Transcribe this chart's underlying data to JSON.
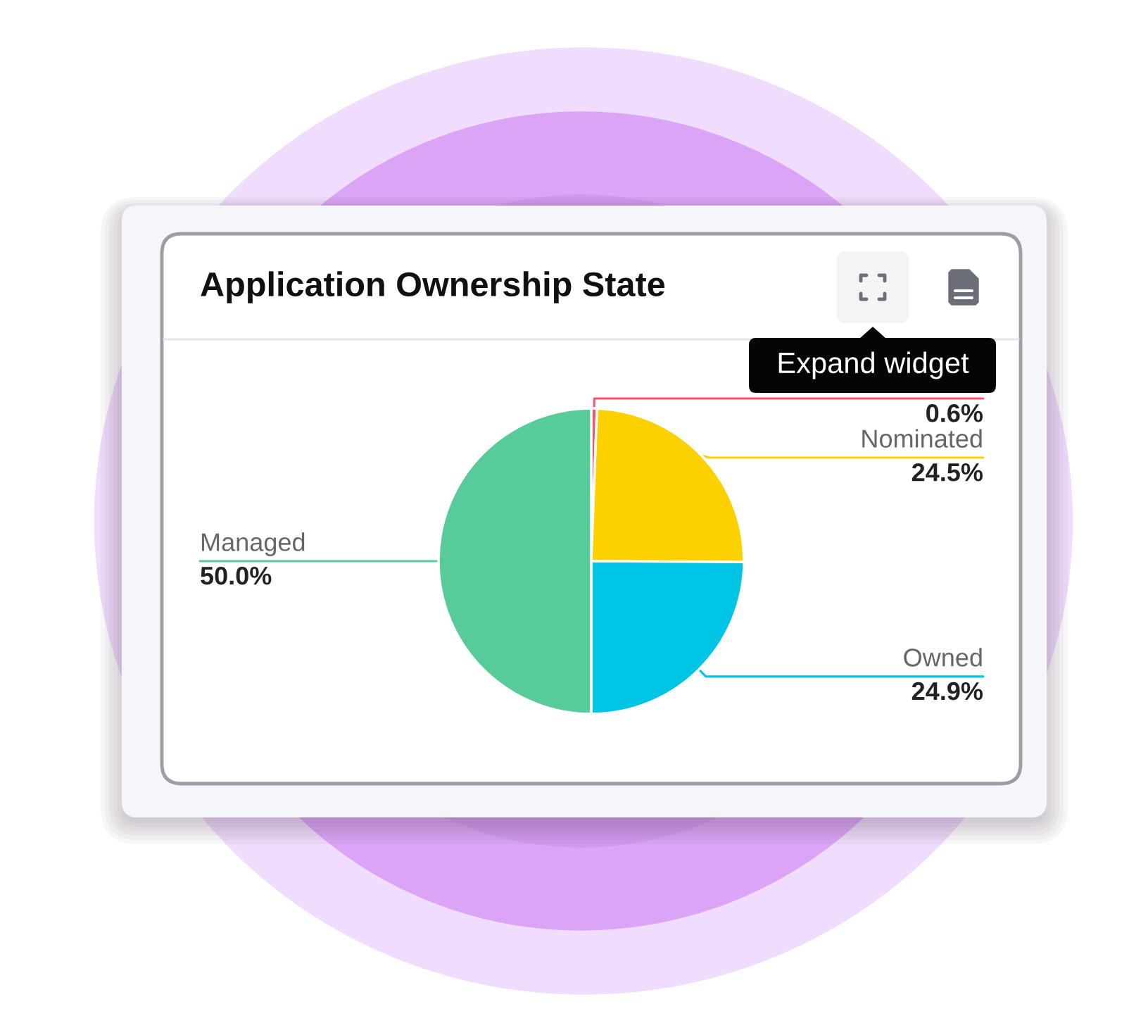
{
  "chart_data": {
    "type": "pie",
    "title": "Application Ownership State",
    "categories": [
      null,
      "Nominated",
      "Owned",
      "Managed"
    ],
    "values": [
      0.6,
      24.5,
      24.9,
      50.0
    ],
    "colors": [
      "#f4566f",
      "#fdd000",
      "#00c4e4",
      "#57cb9a"
    ],
    "value_labels": [
      "0.6%",
      "24.5%",
      "24.9%",
      "50.0%"
    ],
    "annotations": [
      "Expand widget"
    ]
  }
}
